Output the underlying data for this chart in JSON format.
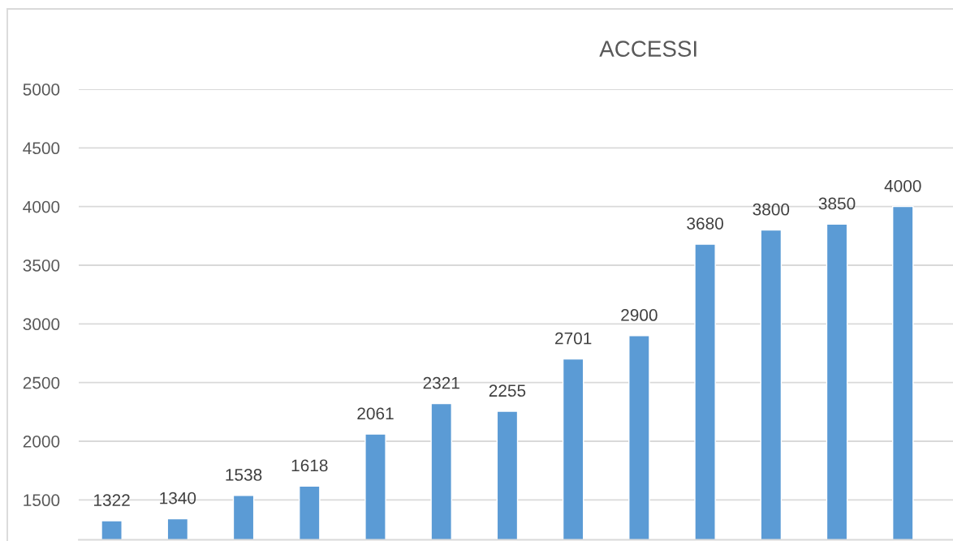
{
  "chart_data": {
    "type": "bar",
    "title": "ACCESSI",
    "categories": [
      null,
      null,
      null,
      null,
      null,
      null,
      null,
      null,
      null,
      null,
      null,
      null,
      null
    ],
    "values": [
      1322,
      1340,
      1538,
      1618,
      2061,
      2321,
      2255,
      2701,
      2900,
      3680,
      3800,
      3850,
      4000
    ],
    "color": "#5b9bd5",
    "ylim": [
      1160,
      5000
    ],
    "yticks": [
      1500,
      2000,
      2500,
      3000,
      3500,
      4000,
      4500,
      5000
    ],
    "grid": "y",
    "data_labels": true,
    "tick_labels": "y"
  }
}
